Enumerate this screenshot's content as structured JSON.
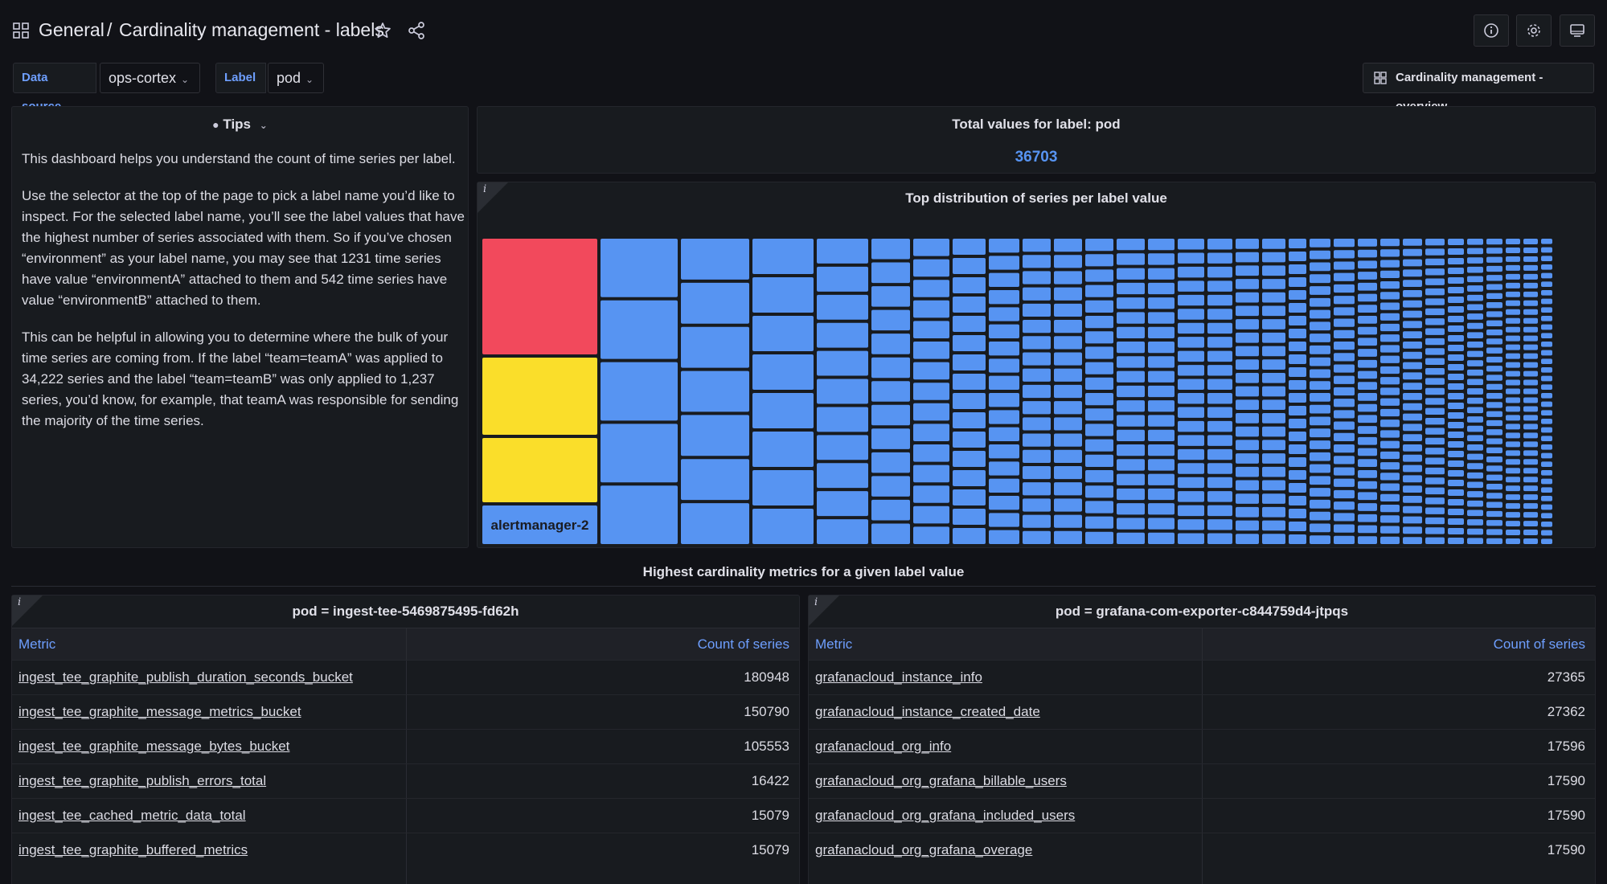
{
  "header": {
    "breadcrumb_root": "General",
    "breadcrumb_sep": "/",
    "title": "Cardinality management - labels"
  },
  "variables": {
    "datasource_label": "Data source",
    "datasource_value": "ops-cortex",
    "label_label": "Label",
    "label_value": "pod"
  },
  "overview_link": "Cardinality management - overview",
  "tips": {
    "title": "Tips",
    "paragraphs": [
      "This dashboard helps you understand the count of time series per label.",
      "Use the selector at the top of the page to pick a label name you’d like to inspect. For the selected label name, you’ll see the label values that have the highest number of series associated with them. So if you’ve chosen “environment” as your label name, you may see that 1231 time series have value “environmentA” attached to them and 542 time series have value “environmentB” attached to them.",
      "This can be helpful in allowing you to determine where the bulk of your time series are coming from. If the label “team=teamA” was applied to 34,222 series and the label “team=teamB” was only applied to 1,237 series, you’d know, for example, that teamA was responsible for sending the majority of the time series."
    ]
  },
  "stat": {
    "title": "Total values for label: pod",
    "value": "36703"
  },
  "treemap": {
    "title": "Top distribution of series per label value",
    "visible_label": "alertmanager-2",
    "colors": {
      "red": "#f2495c",
      "yellow": "#fade2a",
      "blue": "#5794f2"
    }
  },
  "row_title": "Highest cardinality metrics for a given label value",
  "tables": [
    {
      "title": "pod = ingest-tee-5469875495-fd62h",
      "col_metric": "Metric",
      "col_count": "Count of series",
      "rows": [
        {
          "metric": "ingest_tee_graphite_publish_duration_seconds_bucket",
          "count": "180948"
        },
        {
          "metric": "ingest_tee_graphite_message_metrics_bucket",
          "count": "150790"
        },
        {
          "metric": "ingest_tee_graphite_message_bytes_bucket",
          "count": "105553"
        },
        {
          "metric": "ingest_tee_graphite_publish_errors_total",
          "count": "16422"
        },
        {
          "metric": "ingest_tee_cached_metric_data_total",
          "count": "15079"
        },
        {
          "metric": "ingest_tee_graphite_buffered_metrics",
          "count": "15079"
        }
      ]
    },
    {
      "title": "pod = grafana-com-exporter-c844759d4-jtpqs",
      "col_metric": "Metric",
      "col_count": "Count of series",
      "rows": [
        {
          "metric": "grafanacloud_instance_info",
          "count": "27365"
        },
        {
          "metric": "grafanacloud_instance_created_date",
          "count": "27362"
        },
        {
          "metric": "grafanacloud_org_info",
          "count": "17596"
        },
        {
          "metric": "grafanacloud_org_grafana_billable_users",
          "count": "17590"
        },
        {
          "metric": "grafanacloud_org_grafana_included_users",
          "count": "17590"
        },
        {
          "metric": "grafanacloud_org_grafana_overage",
          "count": "17590"
        }
      ]
    }
  ]
}
